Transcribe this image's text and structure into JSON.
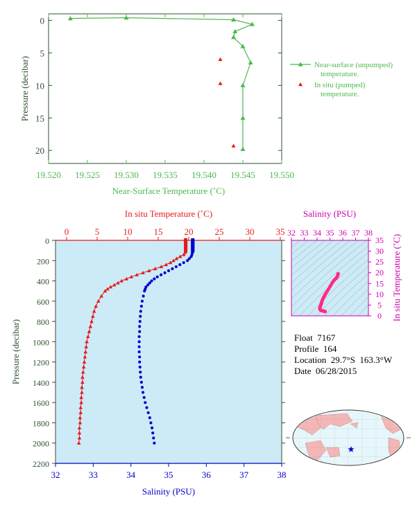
{
  "colors": {
    "green": "#4CB84C",
    "red": "#E41A1C",
    "blue": "#0000CC",
    "magenta": "#CC00AA",
    "pink": "#FF2A8A",
    "axis_dark": "#2F4F2F",
    "panel_bg": "#CDEAF7"
  },
  "info": {
    "float": "Float  7167",
    "profile": "Profile  164",
    "location": "Location  29.7°S  163.3°W",
    "date": "Date  06/28/2015"
  },
  "footnote": "",
  "chart_data": [
    {
      "type": "line",
      "xlabel": "Near-Surface Temperature (˚C)",
      "ylabel": "Pressure (decibar)",
      "xlim": [
        19.52,
        19.55
      ],
      "ylim": [
        22,
        -1
      ],
      "xticks": [
        "19.520",
        "19.525",
        "19.530",
        "19.535",
        "19.540",
        "19.545",
        "19.550"
      ],
      "yticks": [
        "0",
        "5",
        "10",
        "15",
        "20"
      ],
      "series": [
        {
          "name": "Near-surface (unpumped) temperature.",
          "marker": "triangle-line",
          "x": [
            19.5228,
            19.53,
            19.5438,
            19.5462,
            19.544,
            19.5438,
            19.545,
            19.546,
            19.545,
            19.545,
            19.545
          ],
          "y": [
            -0.3,
            -0.4,
            -0.1,
            0.6,
            1.7,
            2.6,
            4.0,
            6.5,
            10.0,
            15.0,
            19.8
          ]
        },
        {
          "name": "In situ (pumped) temperature.",
          "marker": "triangle",
          "x": [
            19.5421,
            19.5421,
            19.5438
          ],
          "y": [
            6.0,
            9.7,
            19.3
          ]
        }
      ]
    },
    {
      "type": "scatter",
      "title_top": "In situ Temperature (˚C)",
      "xlabel_bottom": "Salinity (PSU)",
      "ylabel": "Pressure (decibar)",
      "ylim": [
        2200,
        0
      ],
      "temp_xlim": [
        0,
        35
      ],
      "sal_xlim": [
        32,
        38
      ],
      "temp_ticks": [
        "0",
        "5",
        "10",
        "15",
        "20",
        "25",
        "30",
        "35"
      ],
      "sal_ticks": [
        "32",
        "33",
        "34",
        "35",
        "36",
        "37",
        "38"
      ],
      "pressure_ticks": [
        "0",
        "200",
        "400",
        "600",
        "800",
        "1000",
        "1200",
        "1400",
        "1600",
        "1800",
        "2000",
        "2200"
      ],
      "temperature": {
        "p": [
          0,
          20,
          40,
          60,
          80,
          100,
          120,
          140,
          160,
          180,
          200,
          220,
          240,
          260,
          280,
          300,
          320,
          340,
          360,
          380,
          400,
          420,
          440,
          460,
          480,
          500,
          550,
          600,
          650,
          700,
          750,
          800,
          850,
          900,
          950,
          1000,
          1050,
          1100,
          1150,
          1200,
          1250,
          1300,
          1350,
          1400,
          1450,
          1500,
          1550,
          1600,
          1650,
          1700,
          1750,
          1800,
          1850,
          1900,
          1950,
          2000
        ],
        "t": [
          19.5,
          19.5,
          19.5,
          19.5,
          19.5,
          19.5,
          19.4,
          19.2,
          18.6,
          18.0,
          17.5,
          17.0,
          16.3,
          15.5,
          14.5,
          13.5,
          12.5,
          11.5,
          10.6,
          9.8,
          9.0,
          8.4,
          7.8,
          7.2,
          6.7,
          6.3,
          5.7,
          5.2,
          4.8,
          4.5,
          4.3,
          4.1,
          3.9,
          3.7,
          3.5,
          3.3,
          3.2,
          3.1,
          3.0,
          2.9,
          2.8,
          2.7,
          2.6,
          2.6,
          2.5,
          2.5,
          2.4,
          2.4,
          2.3,
          2.3,
          2.2,
          2.2,
          2.1,
          2.1,
          2.1,
          2.0
        ]
      },
      "salinity": {
        "p": [
          0,
          20,
          40,
          60,
          80,
          100,
          120,
          140,
          160,
          180,
          200,
          220,
          240,
          260,
          280,
          300,
          320,
          340,
          360,
          380,
          400,
          420,
          440,
          460,
          480,
          500,
          550,
          600,
          650,
          700,
          750,
          800,
          850,
          900,
          950,
          1000,
          1050,
          1100,
          1150,
          1200,
          1250,
          1300,
          1350,
          1400,
          1450,
          1500,
          1550,
          1600,
          1650,
          1700,
          1750,
          1800,
          1850,
          1900,
          1950,
          2000
        ],
        "s": [
          35.64,
          35.64,
          35.64,
          35.64,
          35.64,
          35.64,
          35.63,
          35.62,
          35.6,
          35.55,
          35.5,
          35.4,
          35.3,
          35.2,
          35.1,
          35.0,
          34.9,
          34.8,
          34.7,
          34.62,
          34.55,
          34.5,
          34.45,
          34.4,
          34.38,
          34.36,
          34.33,
          34.3,
          34.28,
          34.26,
          34.25,
          34.24,
          34.23,
          34.23,
          34.22,
          34.22,
          34.22,
          34.22,
          34.23,
          34.23,
          34.24,
          34.25,
          34.26,
          34.28,
          34.3,
          34.32,
          34.35,
          34.38,
          34.42,
          34.46,
          34.5,
          34.53,
          34.56,
          34.58,
          34.6,
          34.62
        ]
      }
    },
    {
      "type": "scatter",
      "xlabel": "Salinity (PSU)",
      "ylabel": "In situ Temperature (˚C)",
      "xlim": [
        32,
        38
      ],
      "ylim": [
        0,
        35
      ],
      "xticks": [
        "32",
        "33",
        "34",
        "35",
        "36",
        "37",
        "38"
      ],
      "yticks": [
        "0",
        "5",
        "10",
        "15",
        "20",
        "25",
        "30",
        "35"
      ],
      "points": {
        "s": [
          35.64,
          35.6,
          35.55,
          35.5,
          35.4,
          35.3,
          35.2,
          35.1,
          35.0,
          34.9,
          34.8,
          34.7,
          34.62,
          34.55,
          34.5,
          34.45,
          34.4,
          34.36,
          34.33,
          34.3,
          34.26,
          34.24,
          34.22,
          34.22,
          34.23,
          34.26,
          34.3,
          34.38,
          34.46,
          34.56,
          34.62
        ],
        "t": [
          19.5,
          18.6,
          18.0,
          17.5,
          17.0,
          16.3,
          15.5,
          14.5,
          13.5,
          12.5,
          11.5,
          10.6,
          9.8,
          9.0,
          8.4,
          7.8,
          7.2,
          6.3,
          5.7,
          5.2,
          4.5,
          4.1,
          3.7,
          3.3,
          3.0,
          2.7,
          2.5,
          2.4,
          2.3,
          2.1,
          2.0
        ]
      }
    }
  ]
}
